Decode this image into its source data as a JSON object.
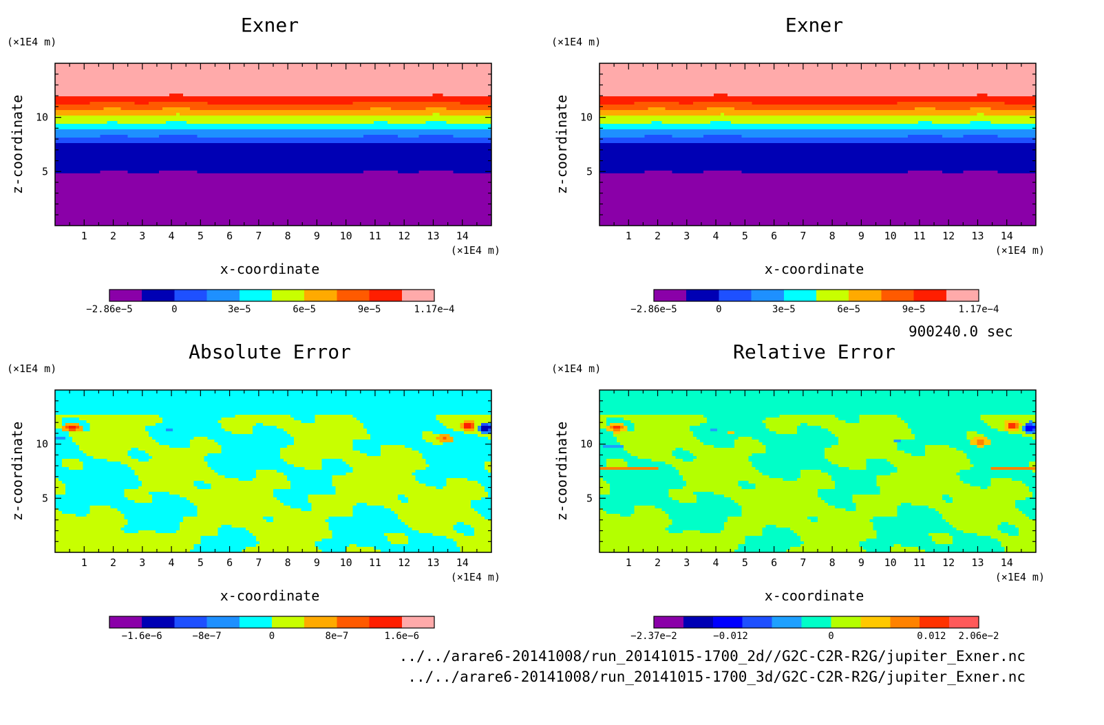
{
  "time_label": "900240.0 sec",
  "source_files": [
    "../../arare6-20141008/run_20141015-1700_2d//G2C-C2R-R2G/jupiter_Exner.nc",
    "../../arare6-20141008/run_20141015-1700_3d/G2C-C2R-R2G/jupiter_Exner.nc"
  ],
  "chart_data": [
    {
      "type": "heatmap",
      "title": "Exner",
      "xlabel": "x-coordinate",
      "ylabel": "z-coordinate",
      "x_unit": "(×1E4 m)",
      "y_unit": "(×1E4 m)",
      "xlim": [
        0,
        15
      ],
      "ylim": [
        0,
        15
      ],
      "x_ticks": [
        1,
        2,
        3,
        4,
        5,
        6,
        7,
        8,
        9,
        10,
        11,
        12,
        13,
        14
      ],
      "y_ticks": [
        5,
        10
      ],
      "field": "exner_bands",
      "levels": [
        -2.86e-05,
        -1.43e-05,
        0,
        1.53e-05,
        3e-05,
        4.5e-05,
        6e-05,
        7.5e-05,
        9e-05,
        0.000104,
        0.000117
      ],
      "colors": [
        "#8a00a8",
        "#0000b4",
        "#1e50ff",
        "#1e90ff",
        "#00ffff",
        "#c8ff00",
        "#ffaa00",
        "#ff5a00",
        "#ff1e00",
        "#ffaaaa"
      ],
      "colorbar_labels": [
        "−2.86e−5",
        "0",
        "3e−5",
        "6e−5",
        "9e−5",
        "1.17e−4"
      ],
      "colorbar_label_positions": [
        0,
        2,
        4,
        6,
        8,
        10
      ]
    },
    {
      "type": "heatmap",
      "title": "Exner",
      "xlabel": "x-coordinate",
      "ylabel": "z-coordinate",
      "x_unit": "(×1E4 m)",
      "y_unit": "(×1E4 m)",
      "xlim": [
        0,
        15
      ],
      "ylim": [
        0,
        15
      ],
      "x_ticks": [
        1,
        2,
        3,
        4,
        5,
        6,
        7,
        8,
        9,
        10,
        11,
        12,
        13,
        14
      ],
      "y_ticks": [
        5,
        10
      ],
      "field": "exner_bands",
      "levels": [
        -2.86e-05,
        -1.43e-05,
        0,
        1.53e-05,
        3e-05,
        4.5e-05,
        6e-05,
        7.5e-05,
        9e-05,
        0.000104,
        0.000117
      ],
      "colors": [
        "#8a00a8",
        "#0000b4",
        "#1e50ff",
        "#1e90ff",
        "#00ffff",
        "#c8ff00",
        "#ffaa00",
        "#ff5a00",
        "#ff1e00",
        "#ffaaaa"
      ],
      "colorbar_labels": [
        "−2.86e−5",
        "0",
        "3e−5",
        "6e−5",
        "9e−5",
        "1.17e−4"
      ],
      "colorbar_label_positions": [
        0,
        2,
        4,
        6,
        8,
        10
      ]
    },
    {
      "type": "heatmap",
      "title": "Absolute Error",
      "xlabel": "x-coordinate",
      "ylabel": "z-coordinate",
      "x_unit": "(×1E4 m)",
      "y_unit": "(×1E4 m)",
      "xlim": [
        0,
        15
      ],
      "ylim": [
        0,
        15
      ],
      "x_ticks": [
        1,
        2,
        3,
        4,
        5,
        6,
        7,
        8,
        9,
        10,
        11,
        12,
        13,
        14
      ],
      "y_ticks": [
        5,
        10
      ],
      "field": "absolute_error",
      "levels": [
        -2e-06,
        -1.6e-06,
        -1.2e-06,
        -8e-07,
        -4e-07,
        0,
        4e-07,
        8e-07,
        1.2e-06,
        1.6e-06,
        2e-06
      ],
      "colors": [
        "#8a00a8",
        "#0000b4",
        "#1e50ff",
        "#1e90ff",
        "#00ffff",
        "#c8ff00",
        "#ffaa00",
        "#ff5a00",
        "#ff1e00",
        "#ffaaaa"
      ],
      "colorbar_labels": [
        "−1.6e−6",
        "−8e−7",
        "0",
        "8e−7",
        "1.6e−6"
      ],
      "colorbar_label_positions": [
        1,
        3,
        5,
        7,
        9
      ]
    },
    {
      "type": "heatmap",
      "title": "Relative Error",
      "xlabel": "x-coordinate",
      "ylabel": "z-coordinate",
      "x_unit": "(×1E4 m)",
      "y_unit": "(×1E4 m)",
      "xlim": [
        0,
        15
      ],
      "ylim": [
        0,
        15
      ],
      "x_ticks": [
        1,
        2,
        3,
        4,
        5,
        6,
        7,
        8,
        9,
        10,
        11,
        12,
        13,
        14
      ],
      "y_ticks": [
        5,
        10
      ],
      "field": "relative_error",
      "levels": [
        -0.0237,
        -0.021,
        -0.018,
        -0.012,
        -0.009,
        -0.003,
        0.003,
        0.009,
        0.012,
        0.018,
        0.0206
      ],
      "colors": [
        "#8a00a8",
        "#0000b4",
        "#0000ff",
        "#1e50ff",
        "#1ea0ff",
        "#00ffc8",
        "#b4ff00",
        "#ffc800",
        "#ff8200",
        "#ff3200",
        "#ff5a5a"
      ],
      "colorbar_labels": [
        "−2.37e−2",
        "−0.012",
        "0",
        "0.012",
        "2.06e−2"
      ],
      "colorbar_label_positions": [
        0,
        2.6,
        6,
        9.4,
        11
      ]
    }
  ]
}
